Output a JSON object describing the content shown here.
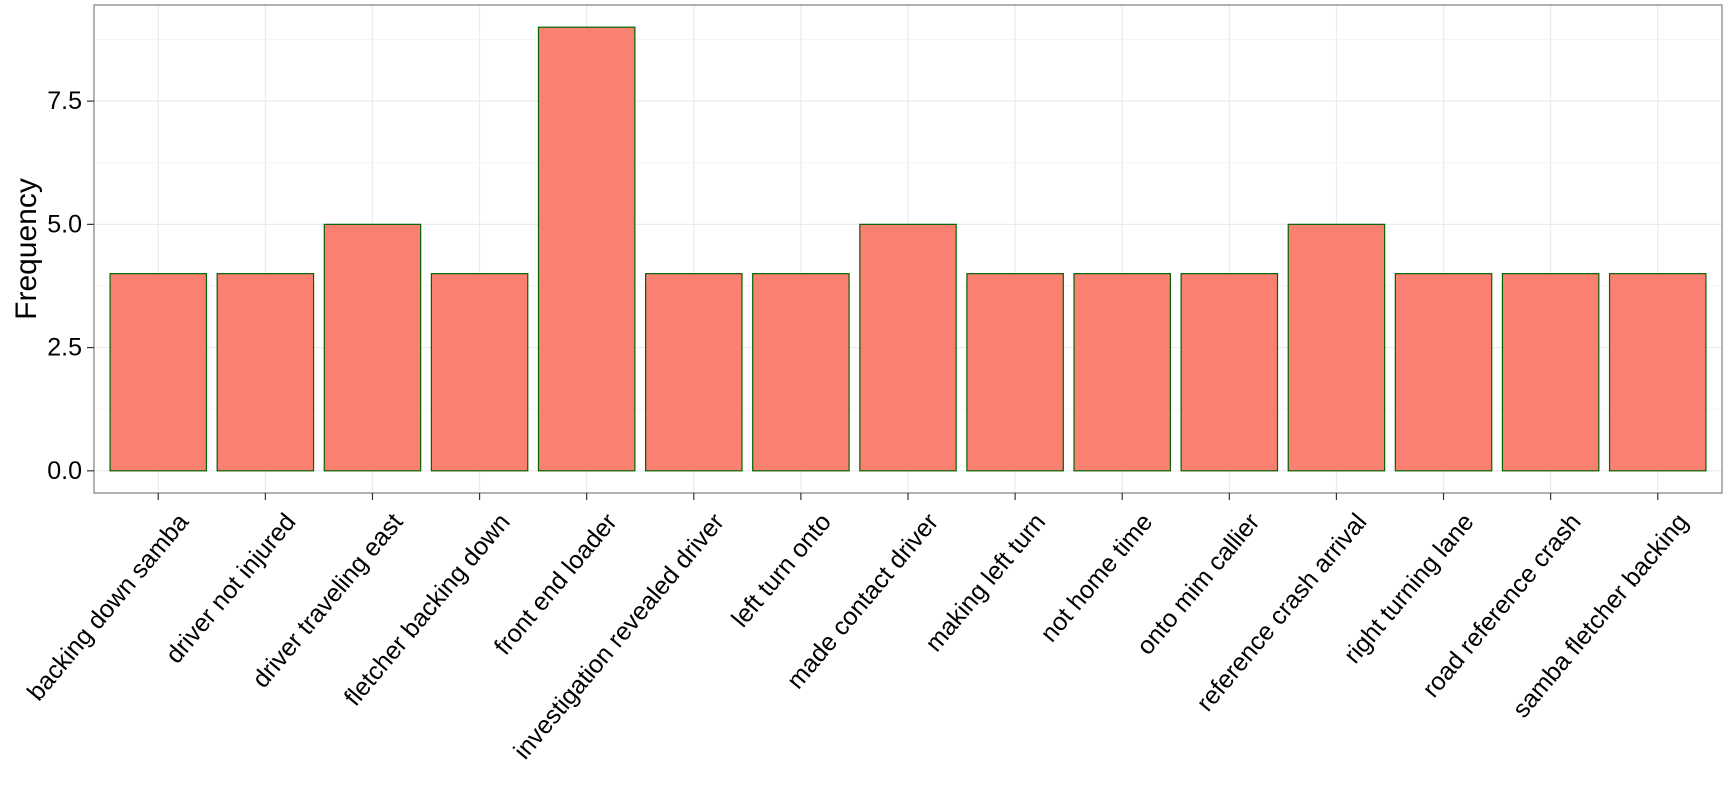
{
  "chart_data": {
    "type": "bar",
    "title": "",
    "xlabel": "",
    "ylabel": "Frequency",
    "categories": [
      "backing down samba",
      "driver not injured",
      "driver traveling east",
      "fletcher backing down",
      "front end loader",
      "investigation revealed driver",
      "left turn onto",
      "made contact driver",
      "making left turn",
      "not home time",
      "onto mim callier",
      "reference crash arrival",
      "right turning lane",
      "road reference crash",
      "samba fletcher backing"
    ],
    "values": [
      4,
      4,
      5,
      4,
      9,
      4,
      4,
      5,
      4,
      4,
      4,
      5,
      4,
      4,
      4
    ],
    "ylim": [
      -0.45,
      9.45
    ],
    "yticks": [
      0,
      2.5,
      5,
      7.5
    ],
    "ytick_labels": [
      "0.0",
      "2.5",
      "5.0",
      "7.5"
    ],
    "grid": true,
    "legend": "none",
    "colors": {
      "bar_fill": "#FA8072",
      "bar_stroke": "#006400",
      "panel_border": "#7F7F7F",
      "grid_major": "#EBEBEB",
      "grid_minor": "#F5F5F5"
    }
  }
}
